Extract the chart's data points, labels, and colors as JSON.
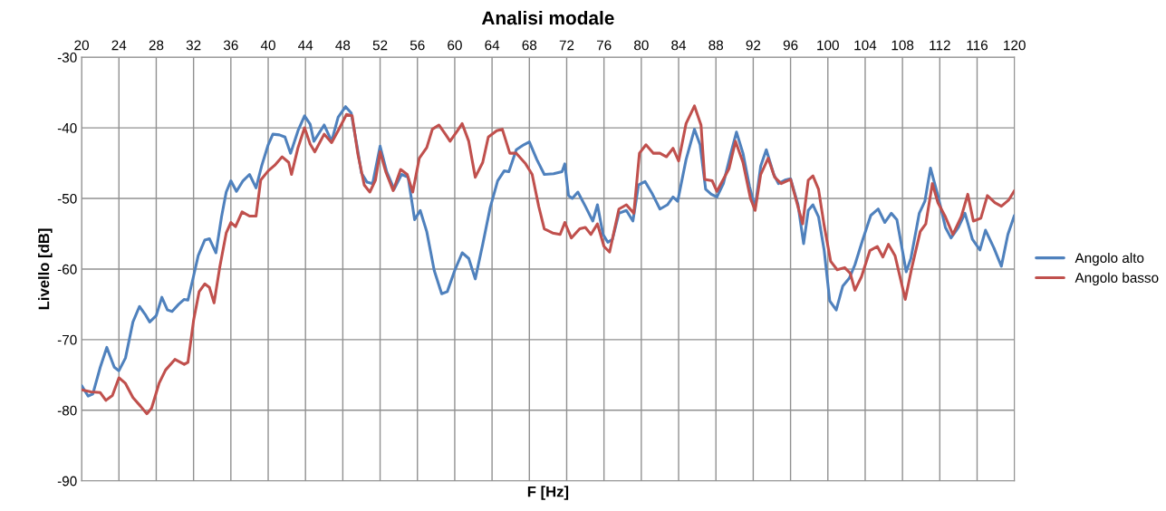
{
  "chart_data": {
    "type": "line",
    "title": "Analisi modale",
    "xlabel": "F [Hz]",
    "ylabel": "Livello [dB]",
    "xlim": [
      20,
      120
    ],
    "xticks": [
      20,
      24,
      28,
      32,
      36,
      40,
      44,
      48,
      52,
      56,
      60,
      64,
      68,
      72,
      76,
      80,
      84,
      88,
      92,
      96,
      100,
      104,
      108,
      112,
      116,
      120
    ],
    "ylim": [
      -90,
      -30
    ],
    "yticks": [
      -90,
      -80,
      -70,
      -60,
      -50,
      -40,
      -30
    ],
    "grid": true,
    "legend": "right",
    "marker": "none",
    "line_style": "solid",
    "series": [
      {
        "name": "Angolo alto",
        "color": "#4f81bd",
        "x": [
          20,
          20.7,
          21.2,
          22,
          22.7,
          23.5,
          24,
          24.7,
          25.5,
          26.2,
          26.8,
          27.3,
          28,
          28.6,
          29.2,
          29.7,
          30.4,
          31,
          31.4,
          32,
          32.5,
          33.2,
          33.7,
          34.4,
          35,
          35.5,
          36,
          36.6,
          37.3,
          38,
          38.7,
          39.3,
          40,
          40.5,
          41.2,
          41.8,
          42.4,
          43.2,
          43.9,
          44.5,
          44.9,
          46,
          46.8,
          47.5,
          48.3,
          48.9,
          49.5,
          50,
          50.6,
          51.2,
          52,
          52.7,
          53.5,
          54.3,
          55,
          55.7,
          56.3,
          57,
          57.8,
          58.6,
          59.2,
          60,
          60.8,
          61.5,
          62.2,
          63,
          63.8,
          64.6,
          65.3,
          65.8,
          66.6,
          67.4,
          68,
          68.8,
          69.6,
          70.6,
          71.5,
          71.8,
          72.2,
          72.6,
          73.2,
          74,
          74.8,
          75.3,
          75.9,
          76.4,
          76.9,
          77.6,
          78.4,
          79.1,
          79.7,
          80.4,
          81.2,
          82,
          82.8,
          83.4,
          83.9,
          84.8,
          85.7,
          86.3,
          86.9,
          87.5,
          88.1,
          88.8,
          89.6,
          90.2,
          90.9,
          91.6,
          92.2,
          92.8,
          93.4,
          94.2,
          94.7,
          95.4,
          96,
          96.8,
          97.4,
          97.9,
          98.4,
          99,
          99.6,
          100.2,
          100.9,
          101.6,
          102.3,
          102.9,
          103.7,
          104.6,
          105.4,
          106.1,
          106.8,
          107.4,
          108.4,
          108.9,
          109.8,
          110.4,
          111,
          111.8,
          112.6,
          113.2,
          114,
          114.7,
          115.5,
          116.3,
          116.9,
          117.8,
          118.6,
          119.3,
          120
        ],
        "values": [
          -76.5,
          -78,
          -77.7,
          -73.9,
          -71.1,
          -73.9,
          -74.4,
          -72.6,
          -67.5,
          -65.3,
          -66.4,
          -67.5,
          -66.6,
          -64,
          -65.8,
          -66,
          -65,
          -64.3,
          -64.4,
          -61,
          -58.1,
          -55.9,
          -55.7,
          -57.7,
          -52.6,
          -49.1,
          -47.5,
          -49,
          -47.5,
          -46.6,
          -48.5,
          -45.4,
          -42.4,
          -40.9,
          -41,
          -41.3,
          -43.6,
          -40.4,
          -38.3,
          -39.5,
          -41.9,
          -39.6,
          -41.9,
          -38.5,
          -37,
          -37.9,
          -42.4,
          -46.4,
          -47.7,
          -47.9,
          -42.6,
          -46.2,
          -48.7,
          -46.6,
          -47,
          -53,
          -51.7,
          -54.7,
          -60.2,
          -63.5,
          -63.2,
          -60.2,
          -57.7,
          -58.5,
          -61.4,
          -56.5,
          -51.3,
          -47.5,
          -46.1,
          -46.2,
          -43.1,
          -42.4,
          -42,
          -44.5,
          -46.6,
          -46.5,
          -46.2,
          -45.1,
          -49.6,
          -50,
          -49.1,
          -51.1,
          -53.2,
          -50.9,
          -55.1,
          -56.2,
          -55.8,
          -52.1,
          -51.7,
          -53.2,
          -48.1,
          -47.6,
          -49.4,
          -51.5,
          -50.9,
          -49.8,
          -50.4,
          -44.5,
          -40.2,
          -42.4,
          -48.7,
          -49.4,
          -49.8,
          -47.9,
          -43.6,
          -40.6,
          -43.6,
          -48.3,
          -51.3,
          -45.4,
          -43.1,
          -46.6,
          -47.9,
          -47.4,
          -47.2,
          -50.9,
          -56.4,
          -51.7,
          -50.9,
          -52.6,
          -57.3,
          -64.5,
          -65.8,
          -62.4,
          -61.3,
          -59.4,
          -56,
          -52.4,
          -51.5,
          -53.4,
          -52.1,
          -53,
          -60.4,
          -58.5,
          -52.1,
          -50.4,
          -45.7,
          -49.6,
          -54.1,
          -55.6,
          -54.1,
          -52.1,
          -55.8,
          -57.3,
          -54.5,
          -57,
          -59.6,
          -55.1,
          -52.4
        ]
      },
      {
        "name": "Angolo basso",
        "color": "#c0504d",
        "x": [
          20,
          21,
          22,
          22.6,
          23.3,
          24,
          24.7,
          25.5,
          26.3,
          27,
          27.5,
          28.3,
          29,
          30,
          31,
          31.4,
          32,
          32.6,
          33.2,
          33.7,
          34.2,
          34.8,
          35.5,
          36,
          36.5,
          37.2,
          38,
          38.7,
          39.2,
          40,
          40.7,
          41.5,
          42.2,
          42.5,
          43.2,
          43.9,
          44.5,
          45,
          46,
          46.8,
          47.5,
          48.4,
          49,
          49.6,
          50.3,
          50.9,
          51.5,
          52,
          52.6,
          53.4,
          54.2,
          54.9,
          55.5,
          56.2,
          57,
          57.6,
          58.3,
          59,
          59.5,
          60.3,
          60.8,
          61.5,
          62.2,
          63,
          63.6,
          64.5,
          65.1,
          65.9,
          66.6,
          67.6,
          68.3,
          69,
          69.6,
          70.5,
          71.3,
          71.8,
          72.5,
          73.4,
          74,
          74.6,
          75.3,
          76,
          76.6,
          77.6,
          78.4,
          79.2,
          79.8,
          80.5,
          81.3,
          82,
          82.7,
          83.4,
          84,
          84.8,
          85.7,
          86.4,
          86.8,
          87.6,
          88.1,
          89.4,
          90.1,
          90.9,
          91.7,
          92.2,
          92.8,
          93.6,
          94.3,
          95,
          96,
          97.3,
          97.9,
          98.4,
          99,
          99.6,
          100.3,
          101,
          101.8,
          102.4,
          102.9,
          103.6,
          104.5,
          105.3,
          105.9,
          106.5,
          107.2,
          108.3,
          109,
          109.9,
          110.5,
          111.2,
          111.8,
          112.6,
          113.4,
          114.3,
          115,
          115.6,
          116.4,
          117.1,
          117.9,
          118.6,
          119.4,
          120
        ],
        "values": [
          -77.1,
          -77.4,
          -77.5,
          -78.6,
          -77.9,
          -75.4,
          -76.2,
          -78.2,
          -79.4,
          -80.5,
          -79.7,
          -76.2,
          -74.3,
          -72.8,
          -73.5,
          -73.2,
          -67.3,
          -63.2,
          -62.1,
          -62.6,
          -64.8,
          -59.8,
          -54.9,
          -53.4,
          -54,
          -51.9,
          -52.5,
          -52.5,
          -47.4,
          -46.1,
          -45.3,
          -44.1,
          -44.9,
          -46.6,
          -42.8,
          -40,
          -42.3,
          -43.4,
          -40.9,
          -42.1,
          -40.4,
          -38.1,
          -38.3,
          -43.6,
          -48.1,
          -49.1,
          -47.4,
          -43.4,
          -46.2,
          -48.9,
          -45.9,
          -46.6,
          -49.1,
          -44.3,
          -42.8,
          -40.2,
          -39.6,
          -40.9,
          -41.9,
          -40.4,
          -39.4,
          -41.9,
          -47,
          -44.9,
          -41.3,
          -40.4,
          -40.2,
          -43.6,
          -43.6,
          -45.1,
          -46.6,
          -51.1,
          -54.3,
          -54.9,
          -55.1,
          -53.4,
          -55.6,
          -54.3,
          -54.1,
          -55.1,
          -53.6,
          -56.8,
          -57.6,
          -51.5,
          -50.9,
          -52.1,
          -43.6,
          -42.4,
          -43.6,
          -43.6,
          -44.1,
          -42.9,
          -44.7,
          -39.4,
          -36.9,
          -39.6,
          -47.3,
          -47.5,
          -49,
          -45.8,
          -41.9,
          -44.9,
          -50,
          -51.7,
          -46.6,
          -44.3,
          -47,
          -47.9,
          -47.3,
          -53.6,
          -47.4,
          -46.8,
          -48.7,
          -53.8,
          -58.9,
          -60.1,
          -59.8,
          -60.6,
          -63,
          -61.1,
          -57.4,
          -56.8,
          -58.3,
          -56.5,
          -58.1,
          -64.3,
          -59.8,
          -54.7,
          -53.6,
          -47.9,
          -50.6,
          -52.6,
          -55.1,
          -52.6,
          -49.4,
          -53.2,
          -52.8,
          -49.6,
          -50.6,
          -51.1,
          -50.2,
          -48.9
        ]
      }
    ]
  }
}
